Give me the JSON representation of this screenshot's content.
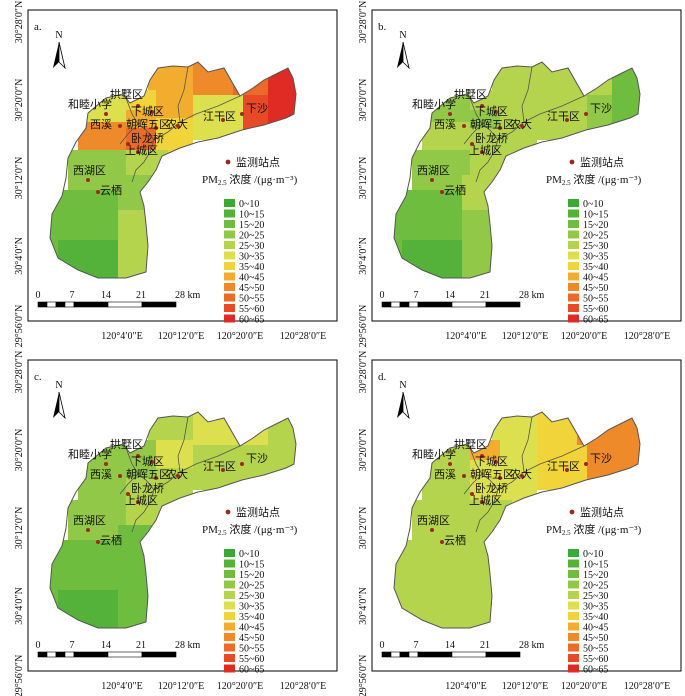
{
  "panels": [
    {
      "tag": "a.",
      "class_indices": [
        5,
        6,
        7,
        8,
        9,
        7,
        6,
        4,
        3,
        2,
        7,
        8,
        5,
        9,
        10,
        11,
        6,
        3,
        4,
        1
      ],
      "stations": [
        "拱墅区",
        "和睦小学",
        "下城区",
        "西溪",
        "朝晖五区",
        "农大",
        "卧龙桥",
        "上城区",
        "西湖区",
        "云栖",
        "江干区",
        "下沙"
      ]
    },
    {
      "tag": "b.",
      "class_indices": [
        3,
        4,
        3,
        4,
        4,
        4,
        4,
        4,
        3,
        2,
        4,
        4,
        4,
        4,
        3,
        2,
        4,
        4,
        3,
        1
      ],
      "stations": [
        "拱墅区",
        "和睦小学",
        "下城区",
        "西溪",
        "朝晖五区",
        "农大",
        "卧龙桥",
        "上城区",
        "西湖区",
        "云栖",
        "江干区",
        "下沙"
      ]
    },
    {
      "tag": "c.",
      "class_indices": [
        3,
        3,
        3,
        3,
        4,
        5,
        4,
        4,
        3,
        2,
        4,
        5,
        4,
        5,
        4,
        4,
        4,
        2,
        2,
        1
      ],
      "stations": [
        "拱墅区",
        "和睦小学",
        "下城区",
        "西溪",
        "朝晖五区",
        "农大",
        "卧龙桥",
        "上城区",
        "西湖区",
        "云栖",
        "江干区",
        "下沙"
      ]
    },
    {
      "tag": "d.",
      "class_indices": [
        4,
        7,
        5,
        4,
        5,
        5,
        5,
        4,
        4,
        4,
        5,
        6,
        6,
        8,
        8,
        8,
        5,
        4,
        4,
        4
      ],
      "stations": [
        "拱墅区",
        "和睦小学",
        "下城区",
        "西溪",
        "朝晖五区",
        "农大",
        "卧龙桥",
        "上城区",
        "西湖区",
        "云栖",
        "江干区",
        "下沙"
      ]
    }
  ],
  "north_label": "N",
  "legend": {
    "station_label": "监测站点",
    "pm_label": "PM",
    "pm_sub": "2.5",
    "unit_label": " 浓度 /(μg·m⁻³)",
    "classes": [
      {
        "label": "0~10",
        "color": "#3aaa35"
      },
      {
        "label": "10~15",
        "color": "#54b23a"
      },
      {
        "label": "15~20",
        "color": "#6ebd3f"
      },
      {
        "label": "20~25",
        "color": "#92c847"
      },
      {
        "label": "25~30",
        "color": "#b5d44d"
      },
      {
        "label": "30~35",
        "color": "#dde04e"
      },
      {
        "label": "35~40",
        "color": "#f0d43a"
      },
      {
        "label": "40~45",
        "color": "#f2ad2e"
      },
      {
        "label": "45~50",
        "color": "#ef8a2a"
      },
      {
        "label": "50~55",
        "color": "#ec6a28"
      },
      {
        "label": "55~60",
        "color": "#e84a27"
      },
      {
        "label": "60~65",
        "color": "#e02a24"
      }
    ]
  },
  "scale_labels": [
    "0",
    "7",
    "14",
    "21",
    "28 km"
  ],
  "lon_labels": [
    "120°4′0″E",
    "120°12′0″E",
    "120°20′0″E",
    "120°28′0″E"
  ],
  "lat_labels": [
    "30°28′0″N",
    "30°20′0″N",
    "30°12′0″N",
    "30°4′0″N",
    "29°56′0″N"
  ],
  "colors": {
    "boundary": "#555555",
    "station_dot": "#9b2b1f",
    "frame": "#000000"
  }
}
